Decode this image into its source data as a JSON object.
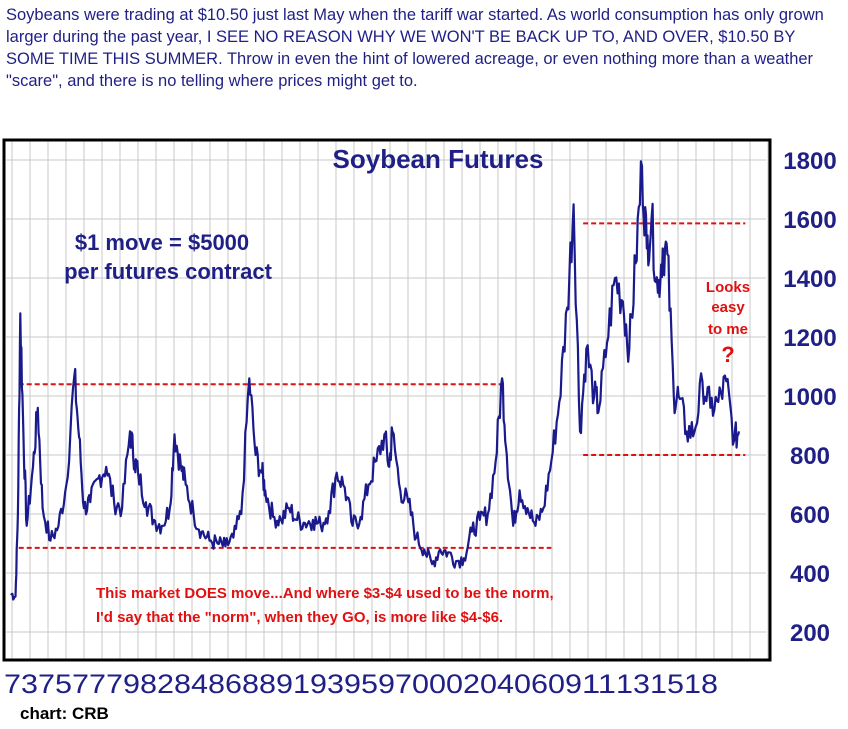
{
  "intro_text": "Soybeans were trading at $10.50 just last May when the tariff war started. As world consumption has only grown larger during the past year, I SEE NO REASON WHY WE WON'T BE BACK UP TO, AND OVER, $10.50 BY SOME TIME THIS SUMMER. Throw in even the hint of lowered acreage, or even nothing more than a weather \"scare\", and there is no telling where prices might get to.",
  "credit": "chart: CRB",
  "colors": {
    "line": "#1a1a8c",
    "dash": "#e01010",
    "text_blue": "#1f1f86",
    "text_red": "#e01010",
    "grid": "#c8c8c8"
  },
  "chart_data": {
    "type": "line",
    "title": "Soybean Futures",
    "xlabel": "",
    "ylabel": "",
    "x_tick_labels": [
      "73",
      "75",
      "77",
      "79",
      "82",
      "84",
      "86",
      "88",
      "91",
      "93",
      "95",
      "97",
      "00",
      "02",
      "04",
      "06",
      "09",
      "11",
      "13",
      "15",
      "18"
    ],
    "y_tick_labels": [
      "200",
      "400",
      "600",
      "800",
      "1000",
      "1200",
      "1400",
      "1600",
      "1800"
    ],
    "ylim": [
      150,
      1850
    ],
    "grid": true,
    "series": [
      {
        "values": [
          {
            "x": 1973.0,
            "y": 330
          },
          {
            "x": 1973.3,
            "y": 320
          },
          {
            "x": 1973.45,
            "y": 600
          },
          {
            "x": 1973.6,
            "y": 1280
          },
          {
            "x": 1973.8,
            "y": 860
          },
          {
            "x": 1974.0,
            "y": 560
          },
          {
            "x": 1974.4,
            "y": 760
          },
          {
            "x": 1974.7,
            "y": 960
          },
          {
            "x": 1975.0,
            "y": 620
          },
          {
            "x": 1975.5,
            "y": 510
          },
          {
            "x": 1976.0,
            "y": 560
          },
          {
            "x": 1976.5,
            "y": 700
          },
          {
            "x": 1977.0,
            "y": 1070
          },
          {
            "x": 1977.3,
            "y": 860
          },
          {
            "x": 1977.6,
            "y": 620
          },
          {
            "x": 1978.0,
            "y": 640
          },
          {
            "x": 1978.5,
            "y": 720
          },
          {
            "x": 1979.0,
            "y": 760
          },
          {
            "x": 1979.5,
            "y": 640
          },
          {
            "x": 1980.0,
            "y": 620
          },
          {
            "x": 1980.5,
            "y": 880
          },
          {
            "x": 1980.8,
            "y": 780
          },
          {
            "x": 1981.0,
            "y": 740
          },
          {
            "x": 1981.5,
            "y": 640
          },
          {
            "x": 1982.0,
            "y": 580
          },
          {
            "x": 1982.5,
            "y": 560
          },
          {
            "x": 1983.0,
            "y": 620
          },
          {
            "x": 1983.3,
            "y": 870
          },
          {
            "x": 1983.7,
            "y": 760
          },
          {
            "x": 1984.0,
            "y": 700
          },
          {
            "x": 1984.5,
            "y": 600
          },
          {
            "x": 1985.0,
            "y": 540
          },
          {
            "x": 1985.5,
            "y": 510
          },
          {
            "x": 1986.0,
            "y": 500
          },
          {
            "x": 1986.5,
            "y": 490
          },
          {
            "x": 1987.0,
            "y": 520
          },
          {
            "x": 1987.5,
            "y": 600
          },
          {
            "x": 1988.0,
            "y": 1060
          },
          {
            "x": 1988.4,
            "y": 800
          },
          {
            "x": 1988.8,
            "y": 740
          },
          {
            "x": 1989.0,
            "y": 680
          },
          {
            "x": 1989.5,
            "y": 590
          },
          {
            "x": 1990.0,
            "y": 580
          },
          {
            "x": 1990.5,
            "y": 620
          },
          {
            "x": 1991.0,
            "y": 580
          },
          {
            "x": 1991.5,
            "y": 570
          },
          {
            "x": 1992.0,
            "y": 580
          },
          {
            "x": 1992.5,
            "y": 560
          },
          {
            "x": 1993.0,
            "y": 610
          },
          {
            "x": 1993.5,
            "y": 740
          },
          {
            "x": 1994.0,
            "y": 690
          },
          {
            "x": 1994.5,
            "y": 560
          },
          {
            "x": 1995.0,
            "y": 590
          },
          {
            "x": 1995.5,
            "y": 700
          },
          {
            "x": 1996.0,
            "y": 780
          },
          {
            "x": 1996.5,
            "y": 870
          },
          {
            "x": 1996.8,
            "y": 760
          },
          {
            "x": 1997.0,
            "y": 880
          },
          {
            "x": 1997.5,
            "y": 680
          },
          {
            "x": 1998.0,
            "y": 640
          },
          {
            "x": 1998.5,
            "y": 520
          },
          {
            "x": 1999.0,
            "y": 480
          },
          {
            "x": 1999.5,
            "y": 430
          },
          {
            "x": 2000.0,
            "y": 480
          },
          {
            "x": 2000.5,
            "y": 470
          },
          {
            "x": 2001.0,
            "y": 440
          },
          {
            "x": 2001.5,
            "y": 450
          },
          {
            "x": 2002.0,
            "y": 540
          },
          {
            "x": 2002.5,
            "y": 580
          },
          {
            "x": 2003.0,
            "y": 600
          },
          {
            "x": 2003.5,
            "y": 780
          },
          {
            "x": 2003.9,
            "y": 1060
          },
          {
            "x": 2004.2,
            "y": 800
          },
          {
            "x": 2004.6,
            "y": 560
          },
          {
            "x": 2005.0,
            "y": 680
          },
          {
            "x": 2005.5,
            "y": 620
          },
          {
            "x": 2006.0,
            "y": 560
          },
          {
            "x": 2006.5,
            "y": 620
          },
          {
            "x": 2007.0,
            "y": 780
          },
          {
            "x": 2007.5,
            "y": 980
          },
          {
            "x": 2008.0,
            "y": 1300
          },
          {
            "x": 2008.4,
            "y": 1650
          },
          {
            "x": 2008.8,
            "y": 880
          },
          {
            "x": 2009.2,
            "y": 1160
          },
          {
            "x": 2009.7,
            "y": 1000
          },
          {
            "x": 2010.0,
            "y": 960
          },
          {
            "x": 2010.5,
            "y": 1180
          },
          {
            "x": 2011.0,
            "y": 1400
          },
          {
            "x": 2011.5,
            "y": 1320
          },
          {
            "x": 2011.9,
            "y": 1160
          },
          {
            "x": 2012.3,
            "y": 1450
          },
          {
            "x": 2012.7,
            "y": 1780
          },
          {
            "x": 2013.0,
            "y": 1500
          },
          {
            "x": 2013.3,
            "y": 1600
          },
          {
            "x": 2013.7,
            "y": 1350
          },
          {
            "x": 2014.0,
            "y": 1500
          },
          {
            "x": 2014.3,
            "y": 1480
          },
          {
            "x": 2014.7,
            "y": 1000
          },
          {
            "x": 2015.0,
            "y": 1000
          },
          {
            "x": 2015.5,
            "y": 880
          },
          {
            "x": 2016.0,
            "y": 880
          },
          {
            "x": 2016.5,
            "y": 1050
          },
          {
            "x": 2017.0,
            "y": 960
          },
          {
            "x": 2017.5,
            "y": 980
          },
          {
            "x": 2018.0,
            "y": 1050
          },
          {
            "x": 2018.5,
            "y": 850
          },
          {
            "x": 2018.8,
            "y": 880
          }
        ]
      }
    ],
    "reference_lines": [
      {
        "y": 1040,
        "x_from": 1973.5,
        "x_to": 2004.0
      },
      {
        "y": 485,
        "x_from": 1973.5,
        "x_to": 2007.0
      },
      {
        "y": 1585,
        "x_from": 2009.0,
        "x_to": 2019.2
      },
      {
        "y": 800,
        "x_from": 2009.0,
        "x_to": 2019.2
      }
    ],
    "annotations": [
      {
        "text": "$1 move = $5000",
        "color": "blue"
      },
      {
        "text": "per futures contract",
        "color": "blue"
      },
      {
        "text": "Looks",
        "color": "red"
      },
      {
        "text": "easy",
        "color": "red"
      },
      {
        "text": "to me",
        "color": "red"
      },
      {
        "text": "?",
        "color": "red"
      },
      {
        "text": "This market DOES move...And where $3-$4 used to be the norm,",
        "color": "red"
      },
      {
        "text": "I'd say that the \"norm\", when they GO, is more like $4-$6.",
        "color": "red"
      }
    ]
  }
}
